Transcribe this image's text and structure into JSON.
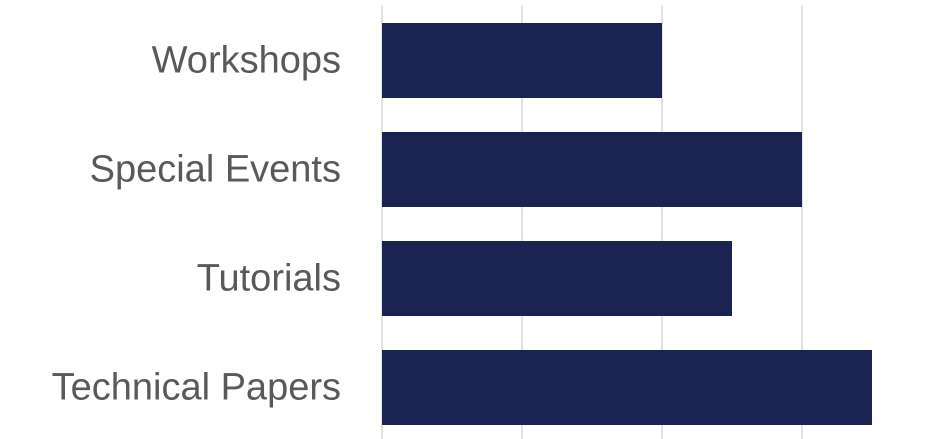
{
  "chart_data": {
    "type": "bar",
    "orientation": "horizontal",
    "categories": [
      "Workshops",
      "Special Events",
      "Tutorials",
      "Technical Papers"
    ],
    "values": [
      2,
      3,
      2.5,
      3.5
    ],
    "xlim": [
      0,
      4
    ],
    "gridlines": "vertical",
    "grid_values": [
      0,
      1,
      2,
      3,
      4
    ],
    "bar_color": "#1a2352",
    "grid_color": "#d9d9d9",
    "label_color": "#595959",
    "title": "",
    "xlabel": "",
    "ylabel": ""
  }
}
